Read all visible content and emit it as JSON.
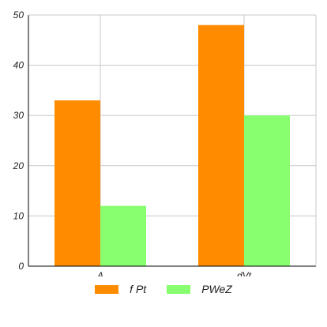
{
  "chart_data": {
    "type": "bar",
    "categories": [
      "A",
      "dVt"
    ],
    "series": [
      {
        "name": "f Pt",
        "values": [
          33,
          48
        ],
        "color": "#ff8c00"
      },
      {
        "name": "PWeZ",
        "values": [
          12,
          30
        ],
        "color": "#88ff6e"
      }
    ],
    "ylim": [
      0,
      50
    ],
    "yticks": [
      "0",
      "10",
      "20",
      "30",
      "40",
      "50"
    ],
    "grid": true,
    "legend_position": "bottom"
  }
}
